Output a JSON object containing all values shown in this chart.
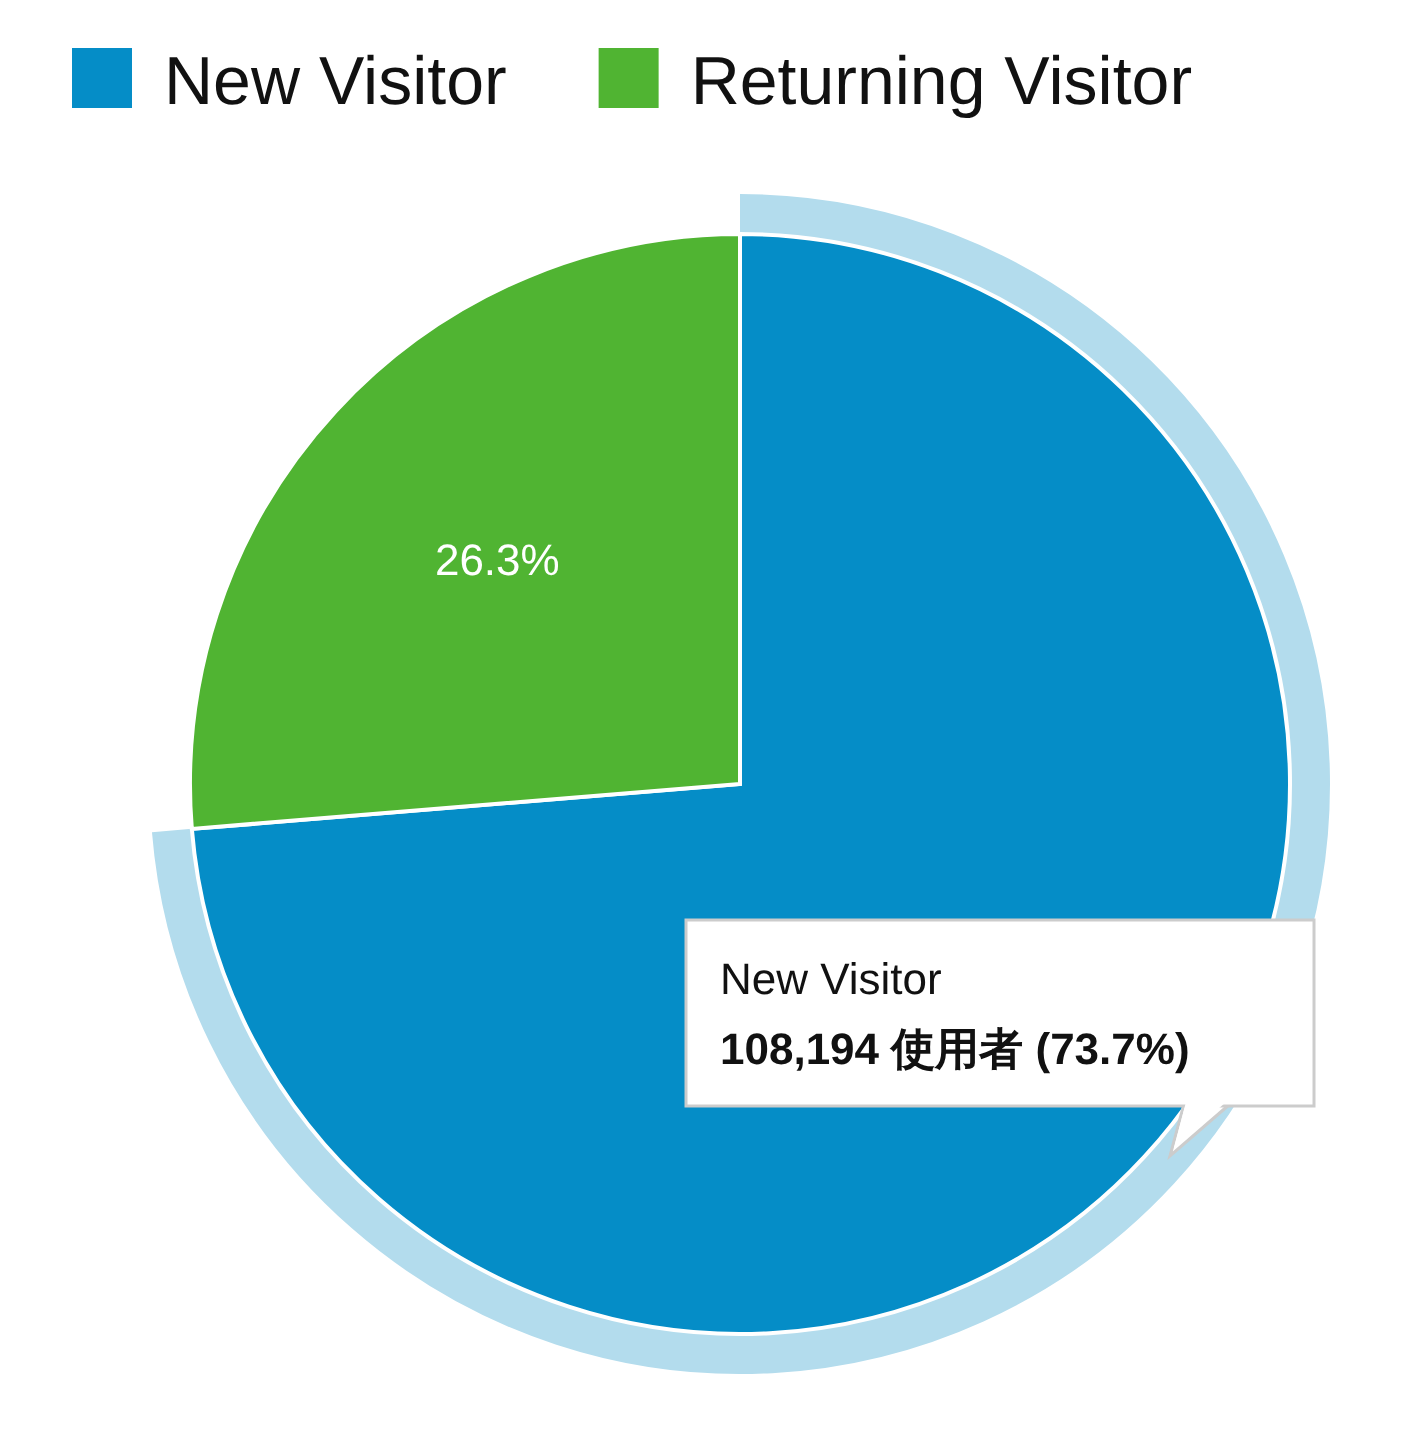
{
  "chart_data": {
    "type": "pie",
    "categories": [
      "New Visitor",
      "Returning Visitor"
    ],
    "values": [
      73.7,
      26.3
    ],
    "colors": [
      "#058dc7",
      "#50b432"
    ],
    "value_labels": [
      null,
      "26.3%"
    ],
    "legend": "top",
    "annotations": [
      "New Visitor",
      "108,194 使用者 (73.7%)"
    ]
  }
}
